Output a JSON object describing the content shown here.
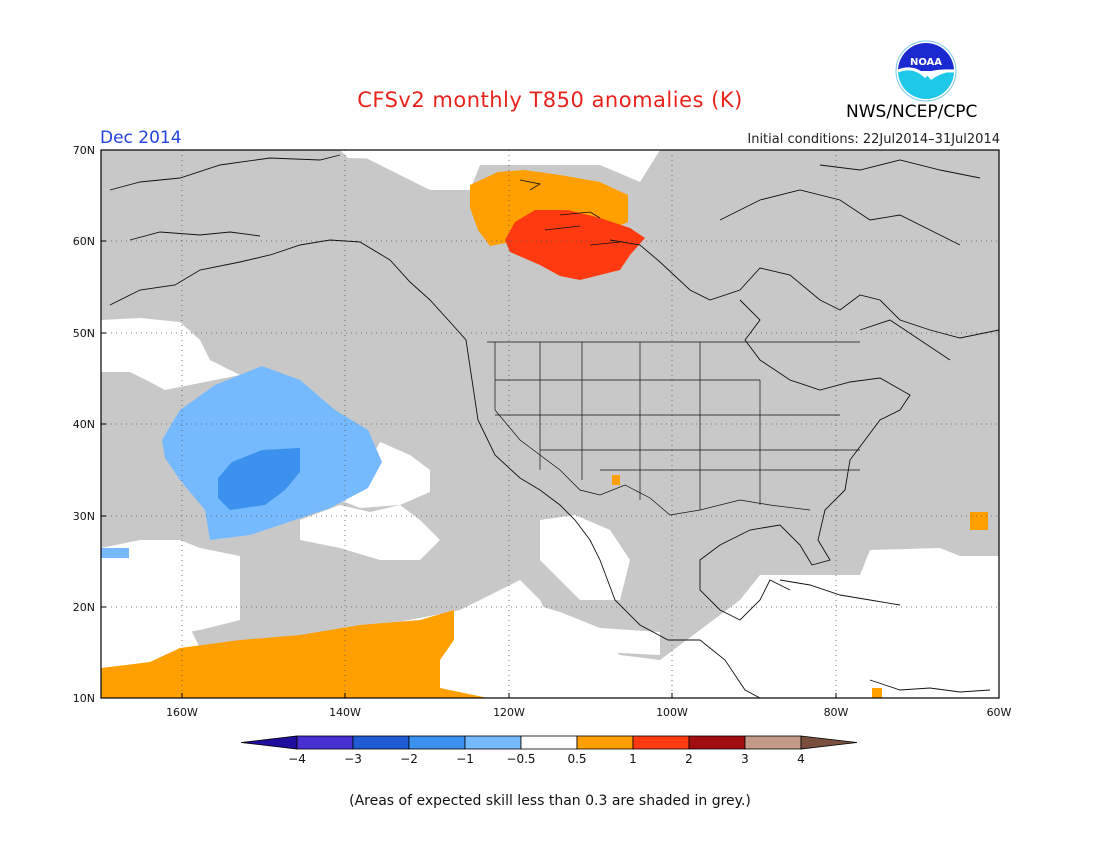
{
  "title": "CFSv2 monthly T850 anomalies (K)",
  "period": "Dec 2014",
  "initial_conditions": "Initial conditions: 22Jul2014–31Jul2014",
  "agency": "NWS/NCEP/CPC",
  "logo_text": "NOAA",
  "footnote": "(Areas of expected skill less than 0.3 are shaded in grey.)",
  "map": {
    "projection": "cylindrical equidistant",
    "lon_range": [
      -171,
      -60
    ],
    "lat_range": [
      10,
      70
    ],
    "gridlines": "dotted",
    "y_ticks": [
      "70N",
      "60N",
      "50N",
      "40N",
      "30N",
      "20N",
      "10N"
    ],
    "x_ticks": [
      "160W",
      "140W",
      "120W",
      "100W",
      "80W",
      "60W"
    ],
    "regions": [
      {
        "label": "skill < 0.3 (grey)",
        "color": "#c8c8c8"
      },
      {
        "label": "anomaly 0.5 to 1 over northwest Canada",
        "color": "#ff9f00"
      },
      {
        "label": "anomaly 1 to 2 over northwest Canada",
        "color": "#ff3a10"
      },
      {
        "label": "anomaly -1 to -0.5 over NE Pacific",
        "color": "#75baff"
      },
      {
        "label": "anomaly -2 to -1 over NE Pacific",
        "color": "#3c91ee"
      },
      {
        "label": "anomaly 0.5 to 1 over tropical Pacific",
        "color": "#ff9f00"
      }
    ]
  },
  "colorbar": {
    "labels": [
      "−4",
      "−3",
      "−2",
      "−1",
      "−0.5",
      "0.5",
      "1",
      "2",
      "3",
      "4"
    ],
    "colors": [
      "#1f0d9e",
      "#4630d2",
      "#1f5bd4",
      "#3c91ee",
      "#75baff",
      "#ffffff",
      "#ff9f00",
      "#ff3a10",
      "#a20d10",
      "#c3998a",
      "#7a4f3e"
    ]
  },
  "colors": {
    "title": "#e8231c",
    "period": "#2244dd",
    "grey_mask": "#c8c8c8"
  }
}
